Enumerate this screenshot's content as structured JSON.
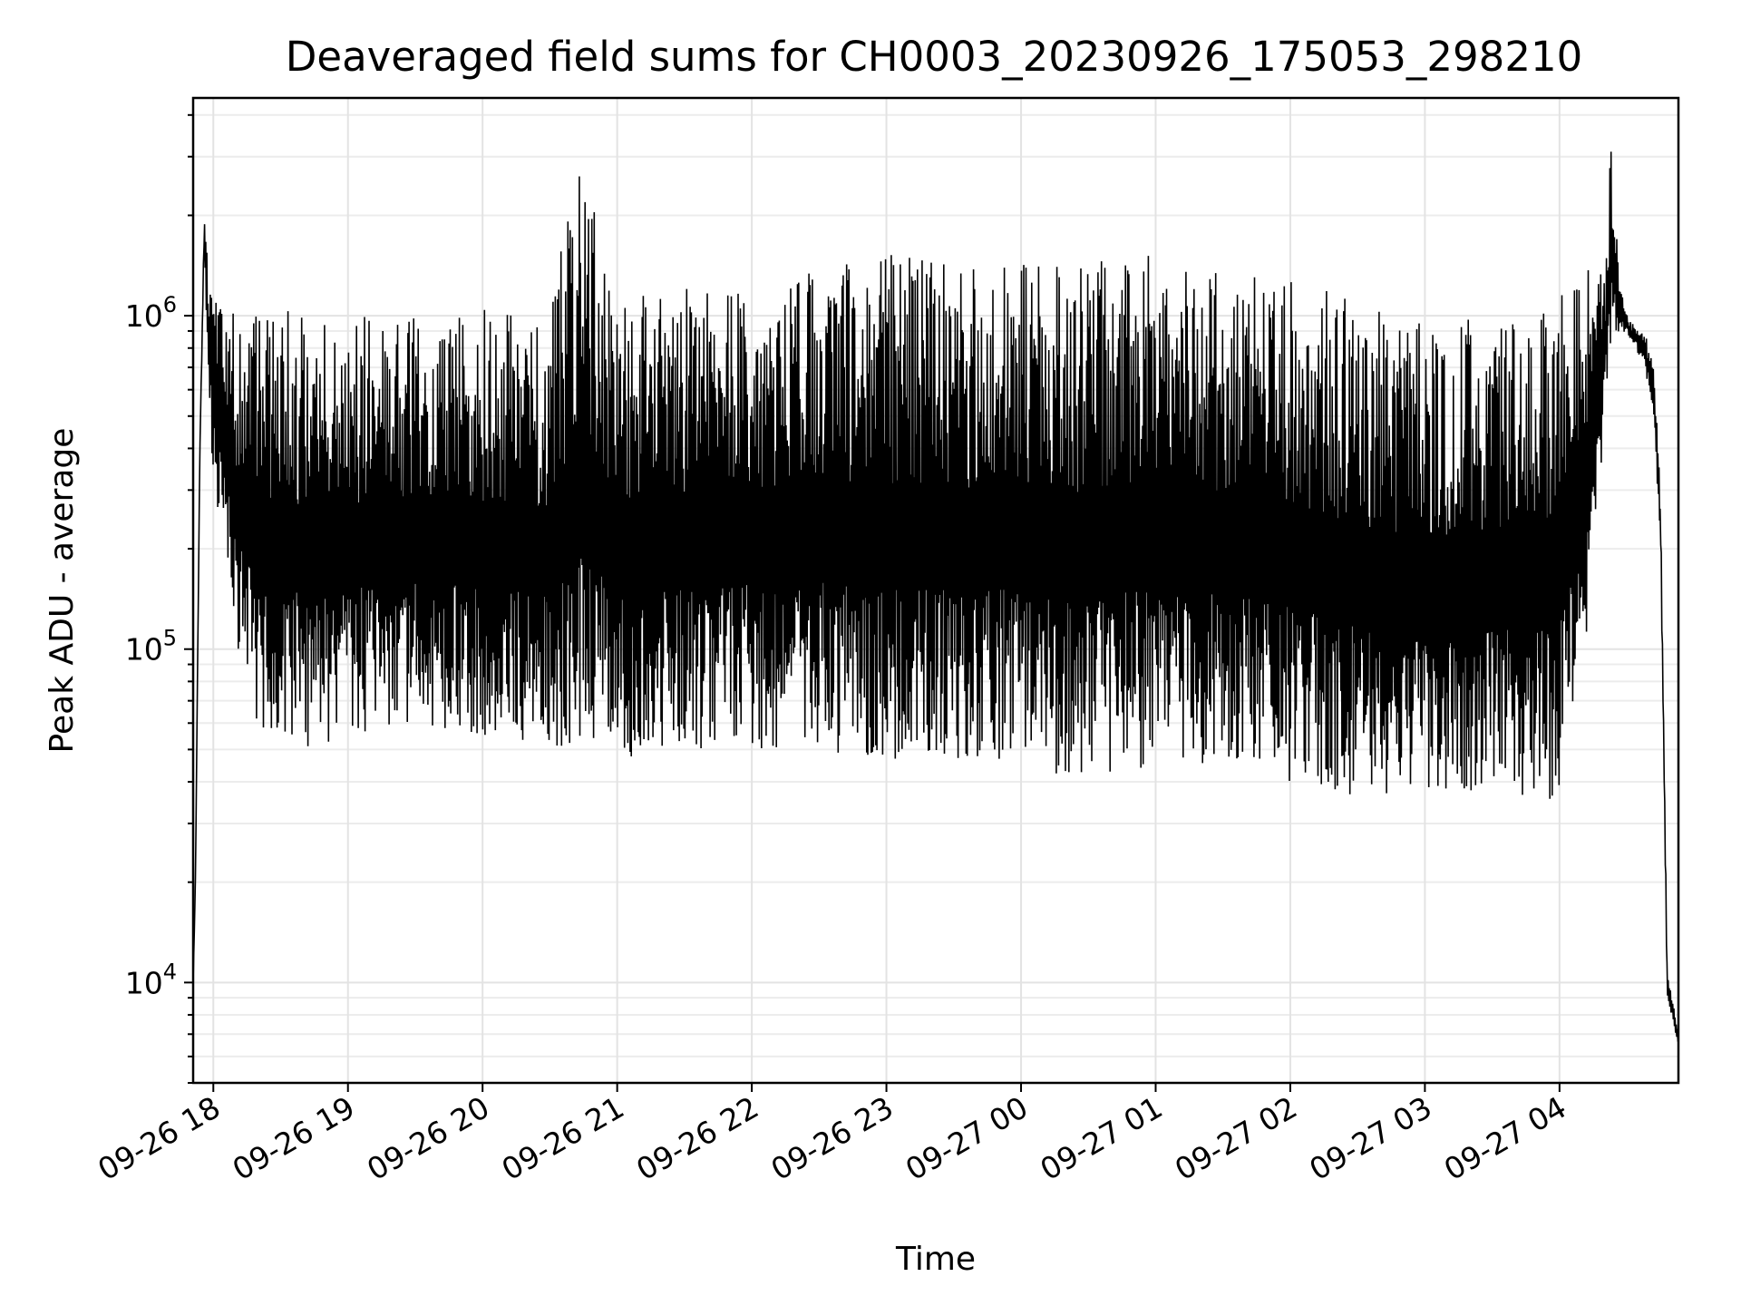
{
  "chart_data": {
    "type": "line",
    "title": "Deaveraged field sums for CH0003_20230926_175053_298210",
    "xlabel": "Time",
    "ylabel": "Peak ADU - average",
    "yscale": "log",
    "ylim": [
      5000,
      4500000
    ],
    "xlim": [
      "2023-09-26 17:51",
      "2023-09-27 04:53"
    ],
    "grid": true,
    "series_color": "#000000",
    "x_ticks": [
      {
        "at": "2023-09-26 18:00",
        "label": "09-26 18"
      },
      {
        "at": "2023-09-26 19:00",
        "label": "09-26 19"
      },
      {
        "at": "2023-09-26 20:00",
        "label": "09-26 20"
      },
      {
        "at": "2023-09-26 21:00",
        "label": "09-26 21"
      },
      {
        "at": "2023-09-26 22:00",
        "label": "09-26 22"
      },
      {
        "at": "2023-09-26 23:00",
        "label": "09-26 23"
      },
      {
        "at": "2023-09-27 00:00",
        "label": "09-27 00"
      },
      {
        "at": "2023-09-27 01:00",
        "label": "09-27 01"
      },
      {
        "at": "2023-09-27 02:00",
        "label": "09-27 02"
      },
      {
        "at": "2023-09-27 03:00",
        "label": "09-27 03"
      },
      {
        "at": "2023-09-27 04:00",
        "label": "09-27 04"
      }
    ],
    "y_ticks": [
      {
        "value": 10000,
        "base": "10",
        "exp": "4"
      },
      {
        "value": 100000,
        "base": "10",
        "exp": "5"
      },
      {
        "value": 1000000,
        "base": "10",
        "exp": "6"
      }
    ],
    "envelope": {
      "x": [
        "2023-09-26 17:51",
        "2023-09-26 17:52",
        "2023-09-26 17:54",
        "2023-09-26 17:56",
        "2023-09-26 17:58",
        "2023-09-26 18:00",
        "2023-09-26 18:05",
        "2023-09-26 18:10",
        "2023-09-26 18:20",
        "2023-09-26 18:30",
        "2023-09-26 18:45",
        "2023-09-26 19:00",
        "2023-09-26 19:30",
        "2023-09-26 20:00",
        "2023-09-26 20:30",
        "2023-09-26 20:43",
        "2023-09-26 21:00",
        "2023-09-26 21:30",
        "2023-09-26 22:00",
        "2023-09-26 22:30",
        "2023-09-26 23:00",
        "2023-09-26 23:30",
        "2023-09-27 00:00",
        "2023-09-27 00:30",
        "2023-09-27 01:00",
        "2023-09-27 01:30",
        "2023-09-27 02:00",
        "2023-09-27 02:30",
        "2023-09-27 03:00",
        "2023-09-27 03:30",
        "2023-09-27 04:00",
        "2023-09-27 04:15",
        "2023-09-27 04:20",
        "2023-09-27 04:23",
        "2023-09-27 04:27",
        "2023-09-27 04:32",
        "2023-09-27 04:38",
        "2023-09-27 04:42",
        "2023-09-27 04:45",
        "2023-09-27 04:48",
        "2023-09-27 04:53"
      ],
      "upper": [
        10000,
        20000,
        400000,
        2100000,
        1500000,
        1300000,
        1100000,
        1000000,
        1000000,
        1050000,
        1050000,
        1000000,
        1000000,
        1050000,
        1050000,
        3000000,
        1150000,
        1250000,
        1300000,
        1400000,
        1550000,
        1450000,
        1450000,
        1450000,
        1550000,
        1350000,
        1300000,
        1100000,
        950000,
        1000000,
        1150000,
        1500000,
        1300000,
        3400000,
        1200000,
        950000,
        900000,
        700000,
        300000,
        11000,
        7000
      ],
      "lower": [
        10000,
        20000,
        400000,
        1700000,
        500000,
        300000,
        200000,
        100000,
        55000,
        55000,
        50000,
        55000,
        60000,
        55000,
        50000,
        50000,
        45000,
        50000,
        50000,
        50000,
        45000,
        45000,
        45000,
        40000,
        45000,
        45000,
        40000,
        35000,
        35000,
        35000,
        35000,
        150000,
        500000,
        800000,
        900000,
        850000,
        700000,
        500000,
        200000,
        9000,
        6500
      ]
    }
  }
}
